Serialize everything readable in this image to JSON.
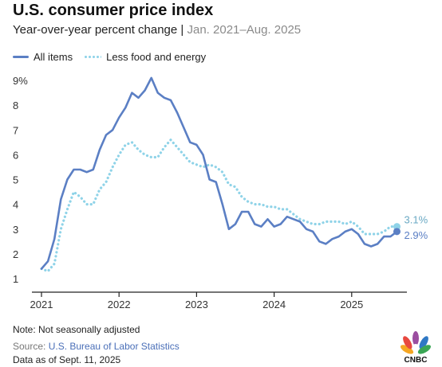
{
  "header": {
    "title": "U.S. consumer price index",
    "subtitle_main": "Year-over-year percent change",
    "subtitle_sep": "|",
    "subtitle_range": "Jan. 2021–Aug. 2025"
  },
  "footer": {
    "note": "Note: Not seasonally adjusted",
    "source_label": "Source:",
    "source_name": "U.S. Bureau of Labor Statistics",
    "as_of": "Data as of Sept. 11, 2025",
    "logo_text": "CNBC"
  },
  "colors": {
    "all_items": "#5b7fc4",
    "core": "#8fd3e8",
    "axis": "#222222",
    "tick_text": "#333333"
  },
  "chart_data": {
    "type": "line",
    "x_unit": "month",
    "x_start": "2021-01",
    "x_end": "2025-08",
    "ylim": [
      1,
      9
    ],
    "yticks": [
      1,
      2,
      3,
      4,
      5,
      6,
      7,
      8,
      9
    ],
    "ytick_labels": [
      "1",
      "2",
      "3",
      "4",
      "5",
      "6",
      "7",
      "8",
      "9%"
    ],
    "xtick_labels": [
      "2021",
      "2022",
      "2023",
      "2024",
      "2025"
    ],
    "grid": false,
    "legend_position": "top-left",
    "series": [
      {
        "name": "All items",
        "style": "solid",
        "end_label": "2.9%",
        "values": [
          1.4,
          1.7,
          2.6,
          4.2,
          5.0,
          5.4,
          5.4,
          5.3,
          5.4,
          6.2,
          6.8,
          7.0,
          7.5,
          7.9,
          8.5,
          8.3,
          8.6,
          9.1,
          8.5,
          8.3,
          8.2,
          7.7,
          7.1,
          6.5,
          6.4,
          6.0,
          5.0,
          4.9,
          4.0,
          3.0,
          3.2,
          3.7,
          3.7,
          3.2,
          3.1,
          3.4,
          3.1,
          3.2,
          3.5,
          3.4,
          3.3,
          3.0,
          2.9,
          2.5,
          2.4,
          2.6,
          2.7,
          2.9,
          3.0,
          2.8,
          2.4,
          2.3,
          2.4,
          2.7,
          2.7,
          2.9
        ]
      },
      {
        "name": "Less food and energy",
        "style": "dotted",
        "end_label": "3.1%",
        "values": [
          1.4,
          1.3,
          1.6,
          3.0,
          3.8,
          4.5,
          4.3,
          4.0,
          4.0,
          4.6,
          4.9,
          5.5,
          6.0,
          6.4,
          6.5,
          6.2,
          6.0,
          5.9,
          5.9,
          6.3,
          6.6,
          6.3,
          6.0,
          5.7,
          5.6,
          5.5,
          5.6,
          5.5,
          5.3,
          4.8,
          4.7,
          4.3,
          4.1,
          4.0,
          4.0,
          3.9,
          3.9,
          3.8,
          3.8,
          3.6,
          3.4,
          3.3,
          3.2,
          3.2,
          3.3,
          3.3,
          3.3,
          3.2,
          3.3,
          3.1,
          2.8,
          2.8,
          2.8,
          2.9,
          3.1,
          3.1
        ]
      }
    ]
  }
}
